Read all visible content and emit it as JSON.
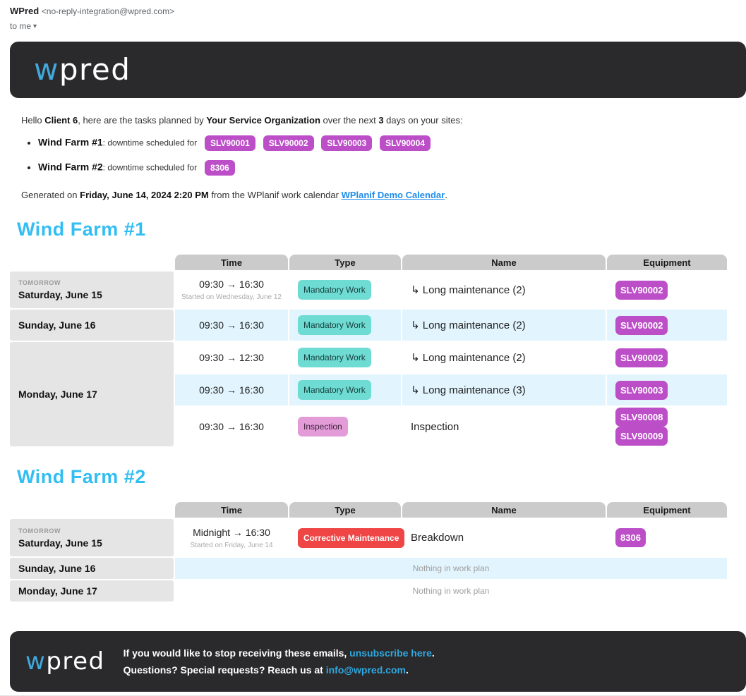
{
  "colors": {
    "accent": "#33bef2",
    "brand_dark": "#2a2a2c",
    "logo_blue": "#41a8dc",
    "badge_purple": "#bc4ec8",
    "badge_teal": "#6fdcd4",
    "badge_pink": "#e49cd9",
    "badge_red": "#ef4545",
    "row_blue": "#e2f4fd",
    "cell_gray": "#e5e5e5",
    "header_gray": "#cbcbcb",
    "link_blue": "#1f8ceb",
    "footer_link": "#2da9e1"
  },
  "gmail": {
    "sender_name": "WPred",
    "sender_address": "<no-reply-integration@wpred.com>",
    "to_label": "to me",
    "caret": "▾"
  },
  "brand": {
    "logo_w": "w",
    "logo_rest": "pred"
  },
  "intro": {
    "pre": "Hello ",
    "client": "Client 6",
    "mid1": ", here are the tasks planned by ",
    "org": "Your Service Organization",
    "mid2": " over the next ",
    "days": "3",
    "post": " days on your sites:"
  },
  "sites": [
    {
      "name": "Wind Farm #1",
      "label": ": downtime scheduled for",
      "badges": [
        "SLV90001",
        "SLV90002",
        "SLV90003",
        "SLV90004"
      ]
    },
    {
      "name": "Wind Farm #2",
      "label": ": downtime scheduled for",
      "badges": [
        "8306"
      ]
    }
  ],
  "generated": {
    "pre": "Generated on ",
    "timestamp": "Friday, June 14, 2024 2:20 PM",
    "mid": " from the WPlanif work calendar ",
    "link": "WPlanif Demo Calendar",
    "post": "."
  },
  "farm1": {
    "title": "Wind Farm #1",
    "columns": [
      "Time",
      "Type",
      "Name",
      "Equipment"
    ],
    "rows": [
      {
        "day_tag": "TOMORROW",
        "date": "Saturday, June 15",
        "time": "09:30 → 16:30",
        "time_note": "Started on Wednesday, June 12",
        "type": "Mandatory Work",
        "name": "↳ Long maintenance (2)",
        "equipment": [
          "SLV90002"
        ]
      },
      {
        "date": "Sunday, June 16",
        "time": "09:30 → 16:30",
        "type": "Mandatory Work",
        "name": "↳ Long maintenance (2)",
        "equipment": [
          "SLV90002"
        ]
      },
      {
        "date": "Monday, June 17",
        "time": "09:30 → 12:30",
        "type": "Mandatory Work",
        "name": "↳ Long maintenance (2)",
        "equipment": [
          "SLV90002"
        ]
      },
      {
        "time": "09:30 → 16:30",
        "type": "Mandatory Work",
        "name": "↳ Long maintenance (3)",
        "equipment": [
          "SLV90003"
        ]
      },
      {
        "time": "09:30 → 16:30",
        "type": "Inspection",
        "name": "Inspection",
        "equipment": [
          "SLV90008",
          "SLV90009"
        ]
      }
    ]
  },
  "farm2": {
    "title": "Wind Farm #2",
    "columns": [
      "Time",
      "Type",
      "Name",
      "Equipment"
    ],
    "rows": [
      {
        "day_tag": "TOMORROW",
        "date": "Saturday, June 15",
        "time": "Midnight → 16:30",
        "time_note": "Started on Friday, June 14",
        "type": "Corrective Maintenance",
        "name": "Breakdown",
        "equipment": [
          "8306"
        ]
      },
      {
        "date": "Sunday, June 16",
        "empty": "Nothing in work plan"
      },
      {
        "date": "Monday, June 17",
        "empty": "Nothing in work plan"
      }
    ]
  },
  "footer": {
    "line1_pre": "If you would like to stop receiving these emails, ",
    "line1_link": "unsubscribe here",
    "line1_post": ".",
    "line2_pre": "Questions? Special requests? Reach us at ",
    "line2_link": "info@wpred.com",
    "line2_post": "."
  }
}
